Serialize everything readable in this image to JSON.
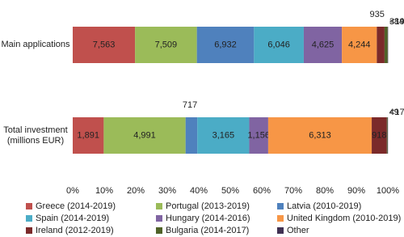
{
  "chart_data": {
    "type": "bar",
    "orientation": "horizontal",
    "stack": "percent",
    "categories": [
      "Main applications",
      "Total investment (millions EUR)"
    ],
    "series": [
      {
        "name": "Greece (2014-2019)",
        "color": "#c0504d",
        "values": [
          7563,
          1891
        ],
        "value_labels": [
          "7,563",
          "1,891"
        ]
      },
      {
        "name": "Portugal (2013-2019)",
        "color": "#9bbb59",
        "values": [
          7509,
          4991
        ],
        "value_labels": [
          "7,509",
          "4,991"
        ]
      },
      {
        "name": "Latvia (2010-2019)",
        "color": "#4f81bd",
        "values": [
          6932,
          717
        ],
        "value_labels": [
          "6,932",
          "717"
        ]
      },
      {
        "name": "Spain (2014-2019)",
        "color": "#4bacc6",
        "values": [
          6046,
          3165
        ],
        "value_labels": [
          "6,046",
          "3,165"
        ]
      },
      {
        "name": "Hungary (2014-2016)",
        "color": "#8064a2",
        "values": [
          4625,
          1156
        ],
        "value_labels": [
          "4,625",
          "1,156"
        ]
      },
      {
        "name": "United Kingdom (2010-2019)",
        "color": "#f79646",
        "values": [
          4244,
          6313
        ],
        "value_labels": [
          "4,244",
          "6,313"
        ]
      },
      {
        "name": "Ireland (2012-2019)",
        "color": "#7b2a2a",
        "values": [
          935,
          918
        ],
        "value_labels": [
          "935",
          "918"
        ]
      },
      {
        "name": "Bulgaria (2014-2017)",
        "color": "#4f6228",
        "values": [
          384,
          49
        ],
        "value_labels": [
          "384",
          "49"
        ]
      },
      {
        "name": "Other",
        "color": "#403152",
        "values": [
          18,
          16
        ],
        "value_labels": [
          "<19",
          "<17"
        ]
      }
    ],
    "xlim": [
      0,
      100
    ],
    "xticks": [
      {
        "value": 0,
        "label": "0%"
      },
      {
        "value": 10,
        "label": "10%"
      },
      {
        "value": 20,
        "label": "20%"
      },
      {
        "value": 30,
        "label": "30%"
      },
      {
        "value": 40,
        "label": "40%"
      },
      {
        "value": 50,
        "label": "50%"
      },
      {
        "value": 60,
        "label": "60%"
      },
      {
        "value": 70,
        "label": "70%"
      },
      {
        "value": 80,
        "label": "80%"
      },
      {
        "value": 90,
        "label": "90%"
      },
      {
        "value": 100,
        "label": "100%"
      }
    ],
    "legend": "bottom"
  }
}
